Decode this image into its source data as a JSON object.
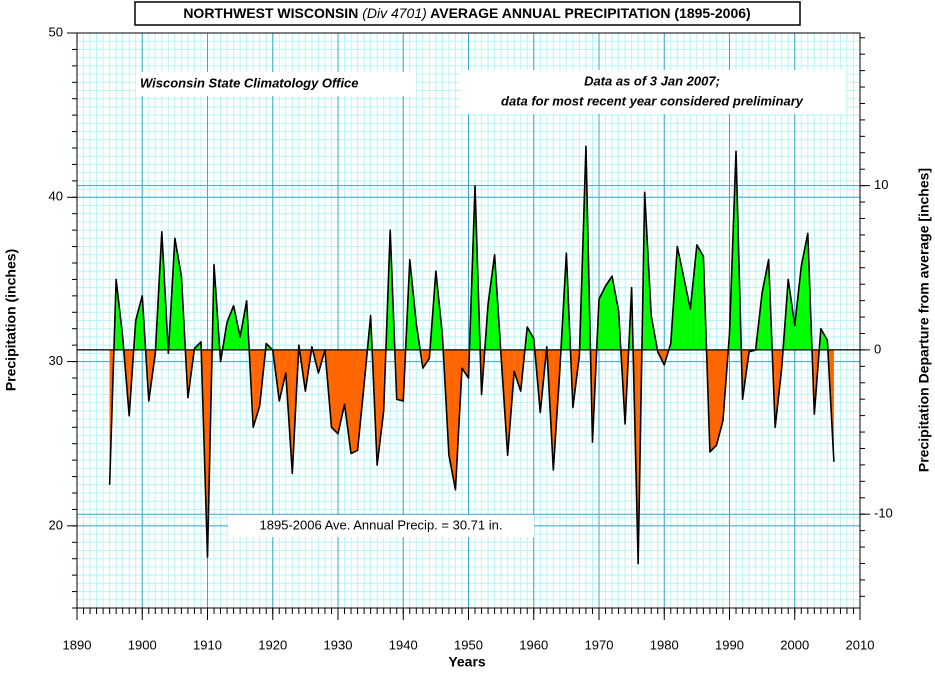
{
  "chart_data": {
    "type": "area",
    "title": [
      "NORTHWEST WISCONSIN",
      "(Div 4701)",
      "AVERAGE ANNUAL PRECIPITATION (1895-2006)"
    ],
    "annotations": [
      "Wisconsin State Climatology Office",
      "Data as of 3 Jan 2007;",
      "data for most recent year considered preliminary"
    ],
    "mean": 30.71,
    "mean_label": "1895-2006 Ave. Annual Precip. = 30.71 in.",
    "x_label": "Years",
    "y_label": "Precipitation (inches)",
    "y2_label": "Precipitation Departure from average [inches]",
    "xlim": [
      1890,
      2010
    ],
    "xticks": [
      1890,
      1900,
      1910,
      1920,
      1930,
      1940,
      1950,
      1960,
      1970,
      1980,
      1990,
      2000,
      2010
    ],
    "ylim": [
      15,
      50
    ],
    "yticks": [
      20,
      30,
      40,
      50
    ],
    "y2lim": [
      -15.71,
      19.29
    ],
    "y2ticks": [
      -10,
      0,
      10
    ],
    "grid": true,
    "line_color": "#000000",
    "above_color": "#00ff00",
    "below_color": "#ff6600",
    "x": [
      1895,
      1896,
      1897,
      1898,
      1899,
      1900,
      1901,
      1902,
      1903,
      1904,
      1905,
      1906,
      1907,
      1908,
      1909,
      1910,
      1911,
      1912,
      1913,
      1914,
      1915,
      1916,
      1917,
      1918,
      1919,
      1920,
      1921,
      1922,
      1923,
      1924,
      1925,
      1926,
      1927,
      1928,
      1929,
      1930,
      1931,
      1932,
      1933,
      1934,
      1935,
      1936,
      1937,
      1938,
      1939,
      1940,
      1941,
      1942,
      1943,
      1944,
      1945,
      1946,
      1947,
      1948,
      1949,
      1950,
      1951,
      1952,
      1953,
      1954,
      1955,
      1956,
      1957,
      1958,
      1959,
      1960,
      1961,
      1962,
      1963,
      1964,
      1965,
      1966,
      1967,
      1968,
      1969,
      1970,
      1971,
      1972,
      1973,
      1974,
      1975,
      1976,
      1977,
      1978,
      1979,
      1980,
      1981,
      1982,
      1983,
      1984,
      1985,
      1986,
      1987,
      1988,
      1989,
      1990,
      1991,
      1992,
      1993,
      1994,
      1995,
      1996,
      1997,
      1998,
      1999,
      2000,
      2001,
      2002,
      2003,
      2004,
      2005,
      2006
    ],
    "values": [
      22.5,
      35.0,
      31.5,
      26.7,
      32.5,
      34.0,
      27.6,
      30.5,
      37.9,
      30.5,
      37.5,
      35.2,
      27.8,
      30.8,
      31.2,
      18.1,
      35.9,
      30.0,
      32.4,
      33.4,
      31.5,
      33.7,
      26.0,
      27.3,
      31.1,
      30.7,
      27.6,
      29.3,
      23.2,
      31.0,
      28.2,
      30.9,
      29.3,
      30.7,
      26.0,
      25.6,
      27.4,
      24.4,
      24.6,
      28.6,
      32.8,
      23.7,
      27.0,
      38.0,
      27.7,
      27.6,
      36.2,
      32.3,
      29.6,
      30.2,
      35.5,
      31.6,
      24.3,
      22.2,
      29.6,
      29.0,
      40.7,
      28.0,
      33.5,
      36.5,
      30.3,
      24.3,
      29.4,
      28.2,
      32.1,
      31.4,
      26.9,
      30.9,
      23.4,
      29.5,
      36.6,
      27.2,
      30.4,
      43.1,
      25.1,
      33.8,
      34.6,
      35.2,
      33.1,
      26.2,
      34.5,
      17.7,
      40.3,
      32.8,
      30.6,
      29.8,
      31.1,
      37.0,
      35.1,
      33.2,
      37.1,
      36.4,
      24.5,
      24.9,
      26.4,
      31.7,
      42.8,
      27.7,
      30.6,
      30.7,
      34.2,
      36.2,
      26.0,
      29.6,
      35.0,
      32.2,
      35.8,
      37.8,
      26.8,
      32.0,
      31.3,
      23.9
    ]
  }
}
